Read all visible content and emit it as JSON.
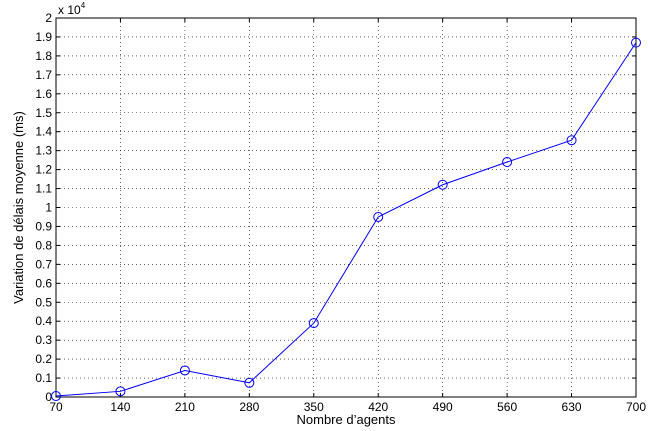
{
  "chart_data": {
    "type": "line",
    "title": "",
    "xlabel": "Nombre d’agents",
    "ylabel": "Variation de délais moyenne (ms)",
    "y_exponent_label": "x 10",
    "y_exponent_power": "4",
    "x_ticks": [
      "70",
      "140",
      "210",
      "280",
      "350",
      "420",
      "490",
      "560",
      "630",
      "700"
    ],
    "y_ticks": [
      "0",
      "0.1",
      "0.2",
      "0.3",
      "0.4",
      "0.5",
      "0.6",
      "0.7",
      "0.8",
      "0.9",
      "1",
      "1.1",
      "1.2",
      "1.3",
      "1.4",
      "1.5",
      "1.6",
      "1.7",
      "1.8",
      "1.9",
      "2"
    ],
    "xlim": [
      70,
      700
    ],
    "ylim": [
      0,
      2
    ],
    "grid": true,
    "series": [
      {
        "color": "#0000ff",
        "marker": "circle",
        "x": [
          70,
          140,
          210,
          280,
          350,
          420,
          490,
          560,
          630,
          700
        ],
        "y": [
          0.005,
          0.03,
          0.14,
          0.075,
          0.39,
          0.95,
          1.12,
          1.24,
          1.355,
          1.87
        ]
      }
    ]
  }
}
